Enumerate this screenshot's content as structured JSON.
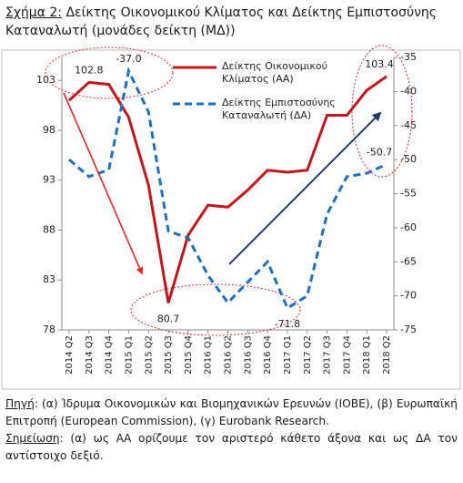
{
  "figure_label": "Σχήμα 2:",
  "chart_data": {
    "type": "line",
    "title": "Δείκτης Οικονομικού Κλίματος και Δείκτης Εμπιστοσύνης Καταναλωτή (μονάδες δείκτη (ΜΔ))",
    "categories": [
      "2014 Q2",
      "2014 Q3",
      "2014 Q4",
      "2015 Q1",
      "2015 Q2",
      "2015 Q3",
      "2015 Q4",
      "2016 Q1",
      "2016 Q2",
      "2016 Q3",
      "2016 Q4",
      "2017 Q1",
      "2017 Q2",
      "2017 Q3",
      "2017 Q4",
      "2018 Q1",
      "2018 Q2"
    ],
    "series": [
      {
        "name": "Δείκτης Οικονομικού Κλίματος (ΑΑ)",
        "color": "#c0161c",
        "dash": false,
        "values": [
          101.0,
          102.8,
          102.6,
          99.3,
          92.5,
          80.7,
          87.5,
          90.5,
          90.3,
          92.0,
          94.0,
          93.8,
          94.0,
          99.5,
          99.5,
          102.0,
          103.4
        ],
        "value_labels": [
          null,
          "102.8",
          null,
          null,
          null,
          "80.7",
          null,
          null,
          null,
          null,
          null,
          null,
          null,
          null,
          null,
          null,
          "103.4"
        ]
      },
      {
        "name": "Δείκτης Εμπιστοσύνης Καταναλωτή (ΔΑ)",
        "color": "#1f6fbf",
        "dash": true,
        "axis": "y2",
        "values": [
          -50.0,
          -52.5,
          -51.5,
          -37.0,
          -43.0,
          -60.5,
          -61.5,
          -67.0,
          -71.0,
          -68.0,
          -65.0,
          -71.8,
          -70.0,
          -58.0,
          -52.5,
          -52.0,
          -50.7
        ],
        "value_labels": [
          null,
          null,
          null,
          "-37.0",
          null,
          null,
          null,
          null,
          null,
          null,
          null,
          "-71.8",
          null,
          null,
          null,
          null,
          "-50.7"
        ]
      }
    ],
    "ylim": [
      78,
      105.3
    ],
    "yticks": [
      78,
      83,
      88,
      93,
      98,
      103
    ],
    "y2lim": [
      -75,
      -35
    ],
    "y2ticks": [
      -75,
      -70,
      -65,
      -60,
      -55,
      -50,
      -45,
      -40,
      -35
    ]
  },
  "notes": [
    {
      "label": "Πηγή",
      "text": ": (α) Ίδρυμα Οικονομικών και Βιομηχανικών Ερευνών (ΙΟΒΕ), (β) Ευρωπαϊκή Επιτροπή (European Commission), (γ) Eurobank Research."
    },
    {
      "label": "Σημείωση",
      "text": ": (α) ως ΑΑ ορίζουμε τον αριστερό κάθετο άξονα και ως ΔΑ τον αντίστοιχο δεξιό."
    }
  ]
}
